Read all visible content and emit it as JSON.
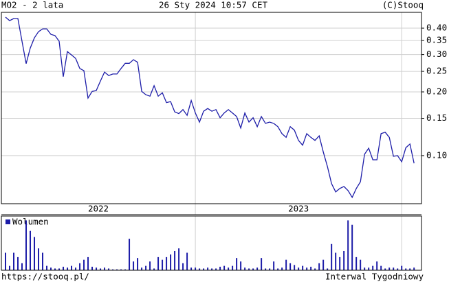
{
  "header": {
    "left": "MO2 - 2 lata",
    "center": "26 Sty 2024 10:57 CET",
    "right": "(C)Stooq"
  },
  "chart_data": [
    {
      "type": "line",
      "log_scale": true,
      "grid": true,
      "color": "#1c1ca8",
      "values": [
        0.451,
        0.434,
        0.444,
        0.444,
        0.347,
        0.272,
        0.322,
        0.36,
        0.385,
        0.397,
        0.397,
        0.374,
        0.369,
        0.347,
        0.236,
        0.31,
        0.299,
        0.288,
        0.258,
        0.252,
        0.187,
        0.201,
        0.203,
        0.225,
        0.248,
        0.239,
        0.243,
        0.243,
        0.258,
        0.273,
        0.273,
        0.284,
        0.276,
        0.201,
        0.194,
        0.191,
        0.214,
        0.191,
        0.198,
        0.178,
        0.18,
        0.161,
        0.158,
        0.165,
        0.155,
        0.182,
        0.159,
        0.144,
        0.162,
        0.167,
        0.162,
        0.165,
        0.151,
        0.159,
        0.165,
        0.159,
        0.153,
        0.135,
        0.159,
        0.144,
        0.151,
        0.137,
        0.153,
        0.142,
        0.144,
        0.142,
        0.137,
        0.127,
        0.122,
        0.137,
        0.132,
        0.118,
        0.112,
        0.127,
        0.122,
        0.118,
        0.124,
        0.104,
        0.0888,
        0.0737,
        0.0674,
        0.07,
        0.0715,
        0.0684,
        0.0635,
        0.07,
        0.0753,
        0.1015,
        0.1085,
        0.0956,
        0.0956,
        0.127,
        0.129,
        0.122,
        0.0993,
        0.1,
        0.0935,
        0.109,
        0.1135,
        0.092
      ],
      "xlim": [
        -1,
        100.8
      ],
      "xticks": [
        46,
        96
      ],
      "x_period_labels": [
        "2022",
        "2023"
      ],
      "ylim": [
        0.0593,
        0.475
      ],
      "yticks": [
        {
          "value": 0.1,
          "label": "0.10"
        },
        0.15,
        {
          "value": 0.2,
          "label": "0.20"
        },
        0.25,
        {
          "value": 0.3,
          "label": "0.30"
        },
        0.35,
        {
          "value": 0.4,
          "label": "0.40"
        }
      ]
    },
    {
      "type": "bar",
      "xlim": [
        -1,
        100.8
      ],
      "xticks": [
        46,
        96
      ],
      "ylim": [
        0,
        62
      ],
      "series": [
        {
          "name": "Wolumen",
          "color": "#1c1ca8",
          "values": [
            20,
            5,
            20,
            15,
            8,
            57,
            45,
            38,
            25,
            20,
            5,
            3,
            2,
            2,
            4,
            3,
            5,
            3,
            8,
            12,
            15,
            4,
            3,
            2,
            3,
            2,
            1,
            1,
            1,
            1,
            36,
            10,
            14,
            3,
            5,
            10,
            2,
            15,
            12,
            15,
            18,
            22,
            25,
            8,
            20,
            3,
            3,
            2,
            2,
            3,
            2,
            2,
            4,
            5,
            3,
            5,
            14,
            10,
            3,
            2,
            2,
            3,
            14,
            2,
            2,
            10,
            2,
            3,
            12,
            8,
            6,
            3,
            5,
            3,
            4,
            2,
            8,
            12,
            2,
            30,
            20,
            15,
            22,
            57,
            52,
            15,
            12,
            3,
            3,
            5,
            10,
            5,
            2,
            3,
            3,
            2,
            5,
            2,
            2,
            3
          ]
        }
      ]
    }
  ],
  "footer": {
    "left": "https://stooq.pl/",
    "right": "Interwal Tygodniowy"
  }
}
